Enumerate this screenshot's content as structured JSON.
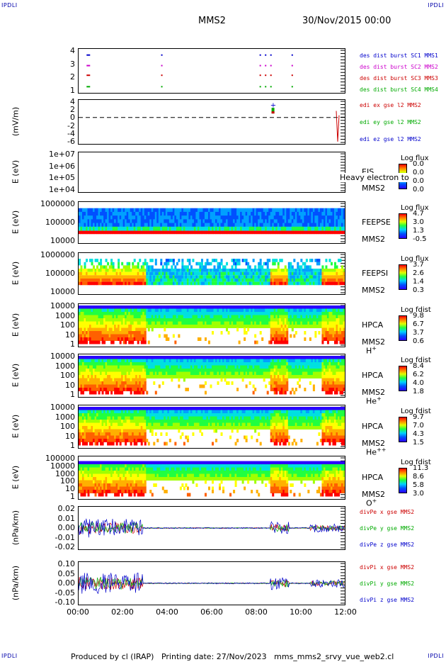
{
  "corner_tl": "IPDLI",
  "corner_tr": "IPDLI",
  "corner_bl": "IPDLI",
  "corner_br": "IPDLI",
  "title": "MMS2",
  "date": "30/Nov/2015 00:00",
  "footer": "Produced by cl (IRAP)   Printing date: 27/Nov/2023   mms_mms2_srvy_vue_web2.cl",
  "chart_data": {
    "type": "heatmap",
    "x_ticks": [
      "00:00",
      "02:00",
      "04:00",
      "06:00",
      "08:00",
      "10:00",
      "12:00"
    ],
    "colors": {
      "red": "#ff0000",
      "green": "#00cc00",
      "blue": "#0000ff",
      "magenta": "#cc00cc"
    },
    "panels": [
      {
        "id": "burst",
        "yticks": [
          "4",
          "3",
          "2",
          "1"
        ],
        "labels": [
          {
            "text": "des dist burst SC1 MMS1",
            "color": "#0000cc"
          },
          {
            "text": "des dist burst SC2 MMS2",
            "color": "#cc00cc"
          },
          {
            "text": "des dist burst SC3 MMS3",
            "color": "#cc0000"
          },
          {
            "text": "des dist burst SC4 MMS4",
            "color": "#00aa00"
          }
        ]
      },
      {
        "id": "edi",
        "ylabel": "(mV/m)",
        "yticks": [
          "4",
          "2",
          "0",
          "-2",
          "-4",
          "-6"
        ],
        "labels": [
          {
            "text": "edi ex gse l2 MMS2",
            "color": "#cc0000"
          },
          {
            "text": "edi ey gse l2 MMS2",
            "color": "#00aa00"
          },
          {
            "text": "edi ez gse l2 MMS2",
            "color": "#0000cc"
          }
        ]
      },
      {
        "id": "eis",
        "ylabel": "E (eV)",
        "yticks": [
          "1e+07",
          "1e+06",
          "1e+05",
          "1e+04"
        ],
        "inst": [
          "EIS",
          "MMS2"
        ],
        "overlay": "Heavy electron to",
        "cb_title": "Log flux",
        "cb_vals": [
          "0.0",
          "0.0",
          "0.0",
          "0.0"
        ]
      },
      {
        "id": "feepse",
        "ylabel": "E (eV)",
        "yticks": [
          "1000000",
          "100000",
          "10000"
        ],
        "inst": [
          "FEEPSE",
          "MMS2"
        ],
        "cb_title": "Log flux",
        "cb_vals": [
          "4.7",
          "3.0",
          "1.3",
          "-0.5"
        ]
      },
      {
        "id": "feepsi",
        "ylabel": "E (eV)",
        "yticks": [
          "1000000",
          "100000",
          "10000"
        ],
        "inst": [
          "FEEPSI",
          "MMS2"
        ],
        "cb_title": "Log flux",
        "cb_vals": [
          "3.7",
          "2.6",
          "1.4",
          "0.3"
        ]
      },
      {
        "id": "hpca_h",
        "ylabel": "E (eV)",
        "yticks": [
          "10000",
          "1000",
          "100",
          "10",
          "1"
        ],
        "inst": [
          "HPCA",
          "MMS2"
        ],
        "species": "H",
        "sup": "+",
        "cb_title": "Log fdist",
        "cb_vals": [
          "9.8",
          "6.7",
          "3.7",
          "0.6"
        ]
      },
      {
        "id": "hpca_he",
        "ylabel": "E (eV)",
        "yticks": [
          "10000",
          "1000",
          "100",
          "10",
          "1"
        ],
        "inst": [
          "HPCA",
          "MMS2"
        ],
        "species": "He",
        "sup": "+",
        "cb_title": "Log fdist",
        "cb_vals": [
          "8.4",
          "6.2",
          "4.0",
          "1.8"
        ]
      },
      {
        "id": "hpca_hepp",
        "ylabel": "E (eV)",
        "yticks": [
          "10000",
          "1000",
          "100",
          "10",
          "1"
        ],
        "inst": [
          "HPCA",
          "MMS2"
        ],
        "species": "He",
        "sup": "++",
        "cb_title": "Log fdist",
        "cb_vals": [
          "9.7",
          "7.0",
          "4.3",
          "1.5"
        ]
      },
      {
        "id": "hpca_o",
        "ylabel": "E (eV)",
        "yticks": [
          "100000",
          "10000",
          "1000",
          "100",
          "10",
          "1"
        ],
        "inst": [
          "HPCA",
          "MMS2"
        ],
        "species": "O",
        "sup": "+",
        "cb_title": "Log fdist",
        "cb_vals": [
          "11.3",
          "8.6",
          "5.8",
          "3.0"
        ]
      },
      {
        "id": "divpe",
        "ylabel": "(nPa/km)",
        "yticks": [
          "0.02",
          "0.01",
          "0.00",
          "-0.01",
          "-0.02"
        ],
        "labels": [
          {
            "text": "divPe x gse MMS2",
            "color": "#cc0000"
          },
          {
            "text": "divPe y gse MMS2",
            "color": "#00aa00"
          },
          {
            "text": "divPe z gse MMS2",
            "color": "#0000cc"
          }
        ]
      },
      {
        "id": "divpi",
        "ylabel": "(nPa/km)",
        "yticks": [
          "0.10",
          "0.05",
          "0.00",
          "-0.05",
          "-0.10"
        ],
        "labels": [
          {
            "text": "divPi x gse MMS2",
            "color": "#cc0000"
          },
          {
            "text": "divPi y gse MMS2",
            "color": "#00aa00"
          },
          {
            "text": "divPi z gse MMS2",
            "color": "#0000cc"
          }
        ]
      }
    ]
  }
}
